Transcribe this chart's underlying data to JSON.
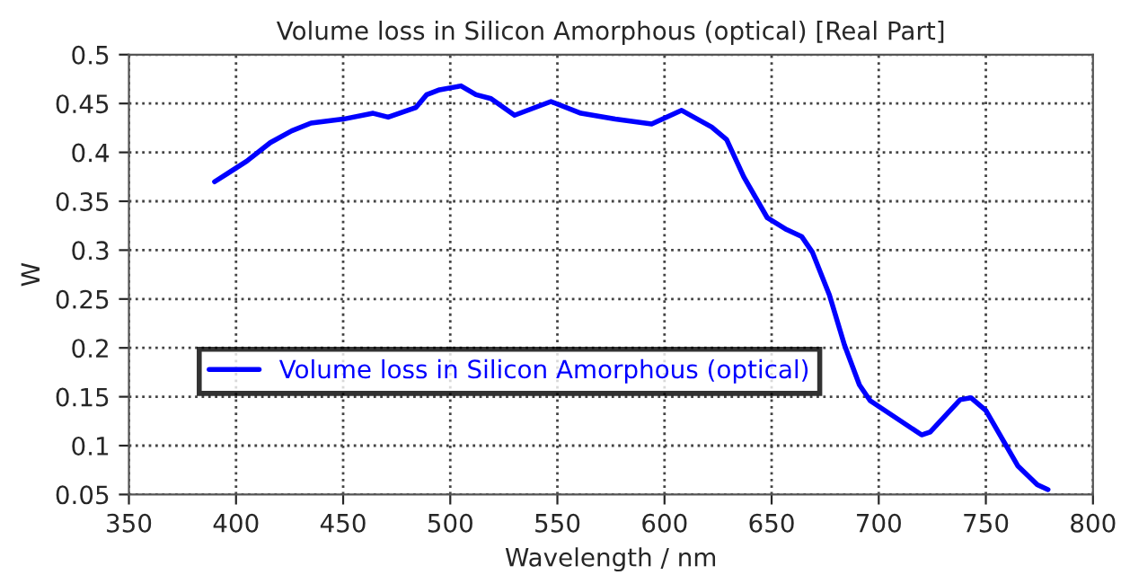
{
  "chart_data": {
    "type": "line",
    "title": "Volume loss in Silicon Amorphous (optical) [Real Part]",
    "xlabel": "Wavelength / nm",
    "ylabel": "W",
    "x": [
      390,
      405,
      416,
      426,
      435,
      450,
      464,
      471,
      484,
      489,
      495,
      505,
      512,
      519,
      530,
      547,
      561,
      577,
      594,
      608,
      622,
      629,
      637,
      648,
      657,
      664,
      669,
      677,
      684,
      691,
      696,
      720,
      724,
      738,
      743,
      750,
      765,
      774,
      779
    ],
    "series": [
      {
        "name": "Volume loss in Silicon Amorphous (optical)",
        "color": "#0000ff",
        "values": [
          0.37,
          0.391,
          0.41,
          0.422,
          0.43,
          0.434,
          0.44,
          0.436,
          0.446,
          0.459,
          0.464,
          0.468,
          0.459,
          0.455,
          0.438,
          0.452,
          0.44,
          0.434,
          0.429,
          0.443,
          0.426,
          0.413,
          0.375,
          0.333,
          0.321,
          0.314,
          0.298,
          0.254,
          0.203,
          0.162,
          0.146,
          0.111,
          0.114,
          0.147,
          0.149,
          0.136,
          0.079,
          0.06,
          0.055
        ]
      }
    ],
    "xlim": [
      350,
      800
    ],
    "xticks": [
      350,
      400,
      450,
      500,
      550,
      600,
      650,
      700,
      750,
      800
    ],
    "ylim": [
      0.05,
      0.5
    ],
    "yticks": [
      0.05,
      0.1,
      0.15,
      0.2,
      0.25,
      0.3,
      0.35,
      0.4,
      0.45,
      0.5
    ],
    "grid": true,
    "legend": "center left",
    "line_style": "solid",
    "marker": "none"
  }
}
